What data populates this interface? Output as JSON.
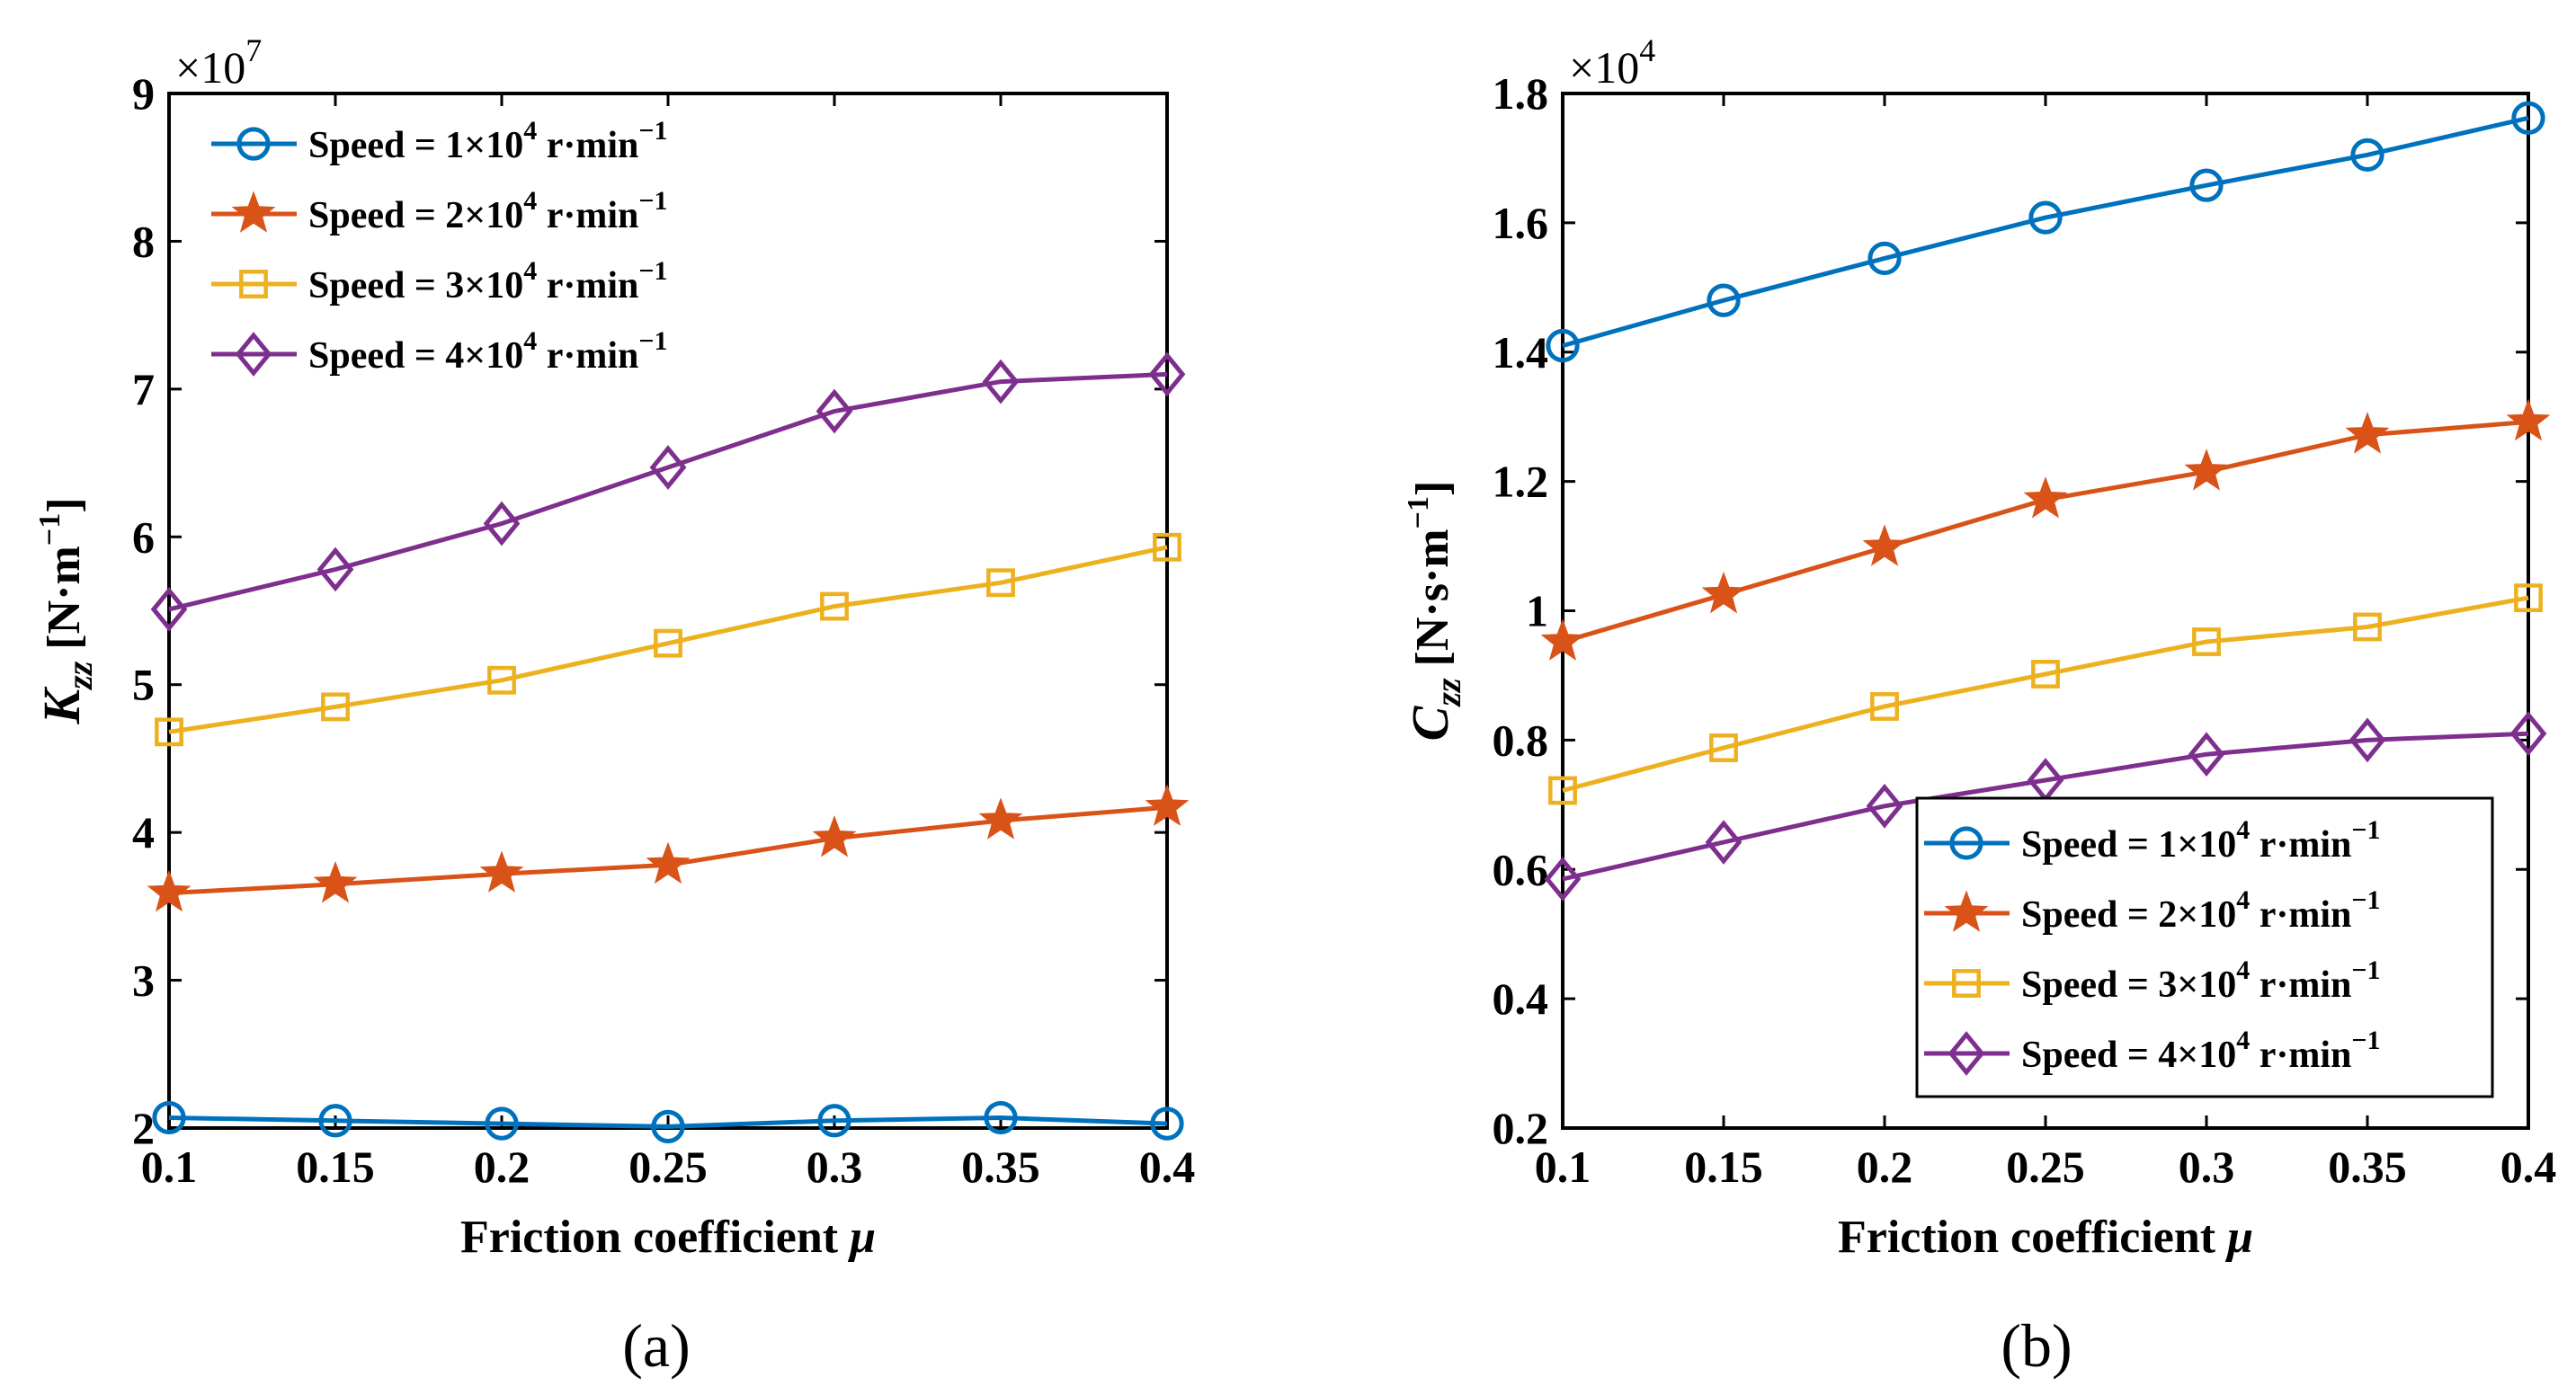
{
  "chart_data": [
    {
      "type": "line",
      "panel": "(a)",
      "xlabel": "Friction coefficient",
      "xlabel_symbol": "μ",
      "ylabel_symbol": "K",
      "ylabel_subscript": "zz",
      "ylabel_unit": "[N·m",
      "ylabel_unit_exp": "−1",
      "ylabel_unit_close": "]",
      "multiplier": "×10",
      "multiplier_exp": "7",
      "x": [
        0.1,
        0.15,
        0.2,
        0.25,
        0.3,
        0.35,
        0.4
      ],
      "xticks": [
        "0.1",
        "0.15",
        "0.2",
        "0.25",
        "0.3",
        "0.35",
        "0.4"
      ],
      "xlim": [
        0.1,
        0.4
      ],
      "ylim": [
        2,
        9
      ],
      "yticks": [
        "2",
        "3",
        "4",
        "5",
        "6",
        "7",
        "8",
        "9"
      ],
      "yticks_values": [
        2,
        3,
        4,
        5,
        6,
        7,
        8,
        9
      ],
      "legend_position": "top-left",
      "series": [
        {
          "name": "Speed = 1×10",
          "name_exp": "4",
          "name_tail": " r·min",
          "name_tail_exp": "−1",
          "marker": "circle",
          "color": "#0072BD",
          "values": [
            2.07,
            2.05,
            2.03,
            2.01,
            2.05,
            2.07,
            2.03
          ]
        },
        {
          "name": "Speed = 2×10",
          "name_exp": "4",
          "name_tail": " r·min",
          "name_tail_exp": "−1",
          "marker": "star",
          "color": "#D95319",
          "values": [
            3.59,
            3.65,
            3.72,
            3.78,
            3.96,
            4.08,
            4.17
          ]
        },
        {
          "name": "Speed = 3×10",
          "name_exp": "4",
          "name_tail": " r·min",
          "name_tail_exp": "−1",
          "marker": "square",
          "color": "#EDB120",
          "values": [
            4.68,
            4.85,
            5.03,
            5.28,
            5.53,
            5.69,
            5.93
          ]
        },
        {
          "name": "Speed = 4×10",
          "name_exp": "4",
          "name_tail": " r·min",
          "name_tail_exp": "−1",
          "marker": "diamond",
          "color": "#7E2F8E",
          "values": [
            5.51,
            5.78,
            6.09,
            6.47,
            6.85,
            7.05,
            7.1
          ]
        }
      ]
    },
    {
      "type": "line",
      "panel": "(b)",
      "xlabel": "Friction coefficient",
      "xlabel_symbol": "μ",
      "ylabel_symbol": "C",
      "ylabel_subscript": "zz",
      "ylabel_unit": "[N·s·m",
      "ylabel_unit_exp": "−1",
      "ylabel_unit_close": "]",
      "multiplier": "×10",
      "multiplier_exp": "4",
      "x": [
        0.1,
        0.15,
        0.2,
        0.25,
        0.3,
        0.35,
        0.4
      ],
      "xticks": [
        "0.1",
        "0.15",
        "0.2",
        "0.25",
        "0.3",
        "0.35",
        "0.4"
      ],
      "xlim": [
        0.1,
        0.4
      ],
      "ylim": [
        0.2,
        1.8
      ],
      "yticks": [
        "0.2",
        "0.4",
        "0.6",
        "0.8",
        "1",
        "1.2",
        "1.4",
        "1.6",
        "1.8"
      ],
      "yticks_values": [
        0.2,
        0.4,
        0.6,
        0.8,
        1.0,
        1.2,
        1.4,
        1.6,
        1.8
      ],
      "legend_position": "bottom-right",
      "series": [
        {
          "name": "Speed = 1×10",
          "name_exp": "4",
          "name_tail": " r·min",
          "name_tail_exp": "−1",
          "marker": "circle",
          "color": "#0072BD",
          "values": [
            1.41,
            1.48,
            1.545,
            1.608,
            1.658,
            1.705,
            1.762
          ]
        },
        {
          "name": "Speed = 2×10",
          "name_exp": "4",
          "name_tail": " r·min",
          "name_tail_exp": "−1",
          "marker": "star",
          "color": "#D95319",
          "values": [
            0.952,
            1.025,
            1.098,
            1.172,
            1.215,
            1.272,
            1.292
          ]
        },
        {
          "name": "Speed = 3×10",
          "name_exp": "4",
          "name_tail": " r·min",
          "name_tail_exp": "−1",
          "marker": "square",
          "color": "#EDB120",
          "values": [
            0.722,
            0.788,
            0.852,
            0.902,
            0.952,
            0.975,
            1.02
          ]
        },
        {
          "name": "Speed = 4×10",
          "name_exp": "4",
          "name_tail": " r·min",
          "name_tail_exp": "−1",
          "marker": "diamond",
          "color": "#7E2F8E",
          "values": [
            0.585,
            0.642,
            0.698,
            0.738,
            0.778,
            0.8,
            0.81
          ]
        }
      ]
    }
  ]
}
